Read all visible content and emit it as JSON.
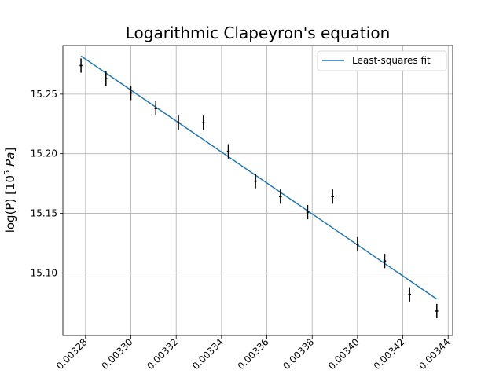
{
  "chart_data": {
    "type": "scatter",
    "title": "Logarithmic Clapeyron's equation",
    "xlabel": "",
    "ylabel": "log(P) [10",
    "ylabel_exponent": "5",
    "ylabel_unit": "Pa",
    "ylabel_suffix": "]",
    "xlim": [
      0.00327,
      0.003442
    ],
    "ylim": [
      15.0475,
      15.2908
    ],
    "grid": true,
    "legend_position": "top-right",
    "x_ticks": [
      {
        "value": 0.00328,
        "label": "0.00328"
      },
      {
        "value": 0.0033,
        "label": "0.00330"
      },
      {
        "value": 0.00332,
        "label": "0.00332"
      },
      {
        "value": 0.00334,
        "label": "0.00334"
      },
      {
        "value": 0.00336,
        "label": "0.00336"
      },
      {
        "value": 0.00338,
        "label": "0.00338"
      },
      {
        "value": 0.0034,
        "label": "0.00340"
      },
      {
        "value": 0.00342,
        "label": "0.00342"
      },
      {
        "value": 0.00344,
        "label": "0.00344"
      }
    ],
    "y_ticks": [
      {
        "value": 15.1,
        "label": "15.10"
      },
      {
        "value": 15.15,
        "label": "15.15"
      },
      {
        "value": 15.2,
        "label": "15.20"
      },
      {
        "value": 15.25,
        "label": "15.25"
      }
    ],
    "series": [
      {
        "type": "errorbar",
        "color": "#000000",
        "x": [
          0.003278,
          0.003289,
          0.0033,
          0.003311,
          0.003321,
          0.003332,
          0.003343,
          0.003355,
          0.003366,
          0.003378,
          0.003389,
          0.0034,
          0.003412,
          0.003423,
          0.003435
        ],
        "y": [
          15.274,
          15.263,
          15.251,
          15.238,
          15.226,
          15.226,
          15.202,
          15.177,
          15.164,
          15.151,
          15.164,
          15.124,
          15.11,
          15.082,
          15.068
        ],
        "y_err": 0.006,
        "x_err": 6e-07
      },
      {
        "type": "line",
        "name": "Least-squares fit",
        "color": "#1f77b4",
        "x": [
          0.003278,
          0.003435
        ],
        "y": [
          15.282,
          15.078
        ]
      }
    ]
  }
}
